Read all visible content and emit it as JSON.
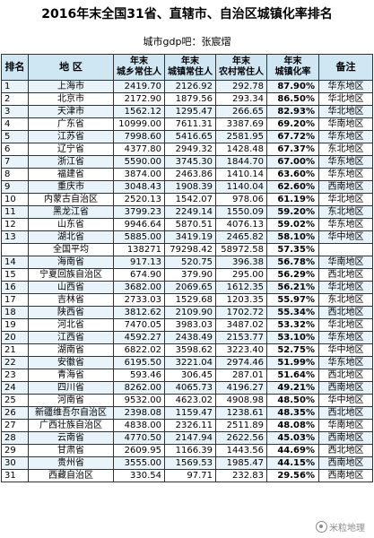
{
  "title": "2016年末全国31省、直辖市、自治区城镇化率排名",
  "source": "城市gdp吧：张宸熠",
  "headers": {
    "rank": "排名",
    "region": "地 区",
    "total_pop": "年末\n城乡常住人",
    "urban_pop": "年末\n城镇常住人",
    "rural_pop": "年末\n农村常住人",
    "rate": "年末\n城镇化率",
    "note": "备注"
  },
  "rows": [
    {
      "rank": "1",
      "region": "上海市",
      "total": "2419.70",
      "urban": "2126.92",
      "rural": "292.78",
      "rate": "87.90%",
      "area": "华东地区"
    },
    {
      "rank": "2",
      "region": "北京市",
      "total": "2172.90",
      "urban": "1879.56",
      "rural": "293.34",
      "rate": "86.50%",
      "area": "华北地区"
    },
    {
      "rank": "3",
      "region": "天津市",
      "total": "1562.12",
      "urban": "1295.47",
      "rural": "266.65",
      "rate": "82.93%",
      "area": "华北地区"
    },
    {
      "rank": "4",
      "region": "广东省",
      "total": "10999.00",
      "urban": "7611.31",
      "rural": "3387.69",
      "rate": "69.20%",
      "area": "华南地区"
    },
    {
      "rank": "5",
      "region": "江苏省",
      "total": "7998.60",
      "urban": "5416.65",
      "rural": "2581.95",
      "rate": "67.72%",
      "area": "华东地区"
    },
    {
      "rank": "6",
      "region": "辽宁省",
      "total": "4377.80",
      "urban": "2949.32",
      "rural": "1428.48",
      "rate": "67.37%",
      "area": "东北地区"
    },
    {
      "rank": "7",
      "region": "浙江省",
      "total": "5590.00",
      "urban": "3745.30",
      "rural": "1844.70",
      "rate": "67.00%",
      "area": "华东地区"
    },
    {
      "rank": "8",
      "region": "福建省",
      "total": "3874.00",
      "urban": "2463.86",
      "rural": "1410.14",
      "rate": "63.60%",
      "area": "华东地区"
    },
    {
      "rank": "9",
      "region": "重庆市",
      "total": "3048.43",
      "urban": "1908.39",
      "rural": "1140.04",
      "rate": "62.60%",
      "area": "西南地区"
    },
    {
      "rank": "10",
      "region": "内蒙古自治区",
      "total": "2520.13",
      "urban": "1542.07",
      "rural": "978.06",
      "rate": "61.19%",
      "area": "华北地区"
    },
    {
      "rank": "11",
      "region": "黑龙江省",
      "total": "3799.23",
      "urban": "2249.14",
      "rural": "1550.09",
      "rate": "59.20%",
      "area": "东北地区"
    },
    {
      "rank": "12",
      "region": "山东省",
      "total": "9946.64",
      "urban": "5870.51",
      "rural": "4076.13",
      "rate": "59.02%",
      "area": "华东地区"
    },
    {
      "rank": "13",
      "region": "湖北省",
      "total": "5885.00",
      "urban": "3419.19",
      "rural": "2465.82",
      "rate": "58.10%",
      "area": "华中地区"
    },
    {
      "rank": "",
      "region": "全国平均",
      "total": "138271",
      "urban": "79298.42",
      "rural": "58972.58",
      "rate": "57.35%",
      "area": ""
    },
    {
      "rank": "14",
      "region": "海南省",
      "total": "917.13",
      "urban": "520.75",
      "rural": "396.38",
      "rate": "56.78%",
      "area": "华南地区"
    },
    {
      "rank": "15",
      "region": "宁夏回族自治区",
      "total": "674.90",
      "urban": "379.90",
      "rural": "295.00",
      "rate": "56.29%",
      "area": "西北地区"
    },
    {
      "rank": "16",
      "region": "山西省",
      "total": "3682.00",
      "urban": "2069.65",
      "rural": "1612.35",
      "rate": "56.21%",
      "area": "华北地区"
    },
    {
      "rank": "17",
      "region": "吉林省",
      "total": "2733.03",
      "urban": "1529.68",
      "rural": "1203.35",
      "rate": "55.97%",
      "area": "东北地区"
    },
    {
      "rank": "18",
      "region": "陕西省",
      "total": "3812.62",
      "urban": "2109.90",
      "rural": "1702.72",
      "rate": "55.34%",
      "area": "西北地区"
    },
    {
      "rank": "19",
      "region": "河北省",
      "total": "7470.05",
      "urban": "3983.03",
      "rural": "3487.02",
      "rate": "53.32%",
      "area": "华北地区"
    },
    {
      "rank": "20",
      "region": "江西省",
      "total": "4592.27",
      "urban": "2438.49",
      "rural": "2153.77",
      "rate": "53.10%",
      "area": "华东地区"
    },
    {
      "rank": "21",
      "region": "湖南省",
      "total": "6822.02",
      "urban": "3598.62",
      "rural": "3223.40",
      "rate": "52.75%",
      "area": "华中地区"
    },
    {
      "rank": "22",
      "region": "安徽省",
      "total": "6195.50",
      "urban": "3221.04",
      "rural": "2974.46",
      "rate": "51.99%",
      "area": "华东地区"
    },
    {
      "rank": "23",
      "region": "青海省",
      "total": "593.46",
      "urban": "306.45",
      "rural": "287.01",
      "rate": "51.64%",
      "area": "西北地区"
    },
    {
      "rank": "24",
      "region": "四川省",
      "total": "8262.00",
      "urban": "4065.73",
      "rural": "4196.27",
      "rate": "49.21%",
      "area": "西南地区"
    },
    {
      "rank": "25",
      "region": "河南省",
      "total": "9532.00",
      "urban": "4623.02",
      "rural": "4908.98",
      "rate": "48.50%",
      "area": "华中地区"
    },
    {
      "rank": "26",
      "region": "新疆维吾尔自治区",
      "total": "2398.08",
      "urban": "1159.47",
      "rural": "1238.61",
      "rate": "48.35%",
      "area": "西北地区"
    },
    {
      "rank": "27",
      "region": "广西壮族自治区",
      "total": "4838.00",
      "urban": "2326.11",
      "rural": "2511.89",
      "rate": "48.08%",
      "area": "华南地区"
    },
    {
      "rank": "28",
      "region": "云南省",
      "total": "4770.50",
      "urban": "2147.94",
      "rural": "2622.56",
      "rate": "45.03%",
      "area": "西南地区"
    },
    {
      "rank": "29",
      "region": "甘肃省",
      "total": "2609.95",
      "urban": "1166.39",
      "rural": "1443.56",
      "rate": "44.69%",
      "area": "西北地区"
    },
    {
      "rank": "30",
      "region": "贵州省",
      "total": "3555.00",
      "urban": "1569.53",
      "rural": "1985.47",
      "rate": "44.15%",
      "area": "西南地区"
    },
    {
      "rank": "31",
      "region": "西藏自治区",
      "total": "330.54",
      "urban": "97.71",
      "rural": "232.83",
      "rate": "29.56%",
      "area": "西南地区"
    }
  ],
  "watermark": "米粒地理"
}
